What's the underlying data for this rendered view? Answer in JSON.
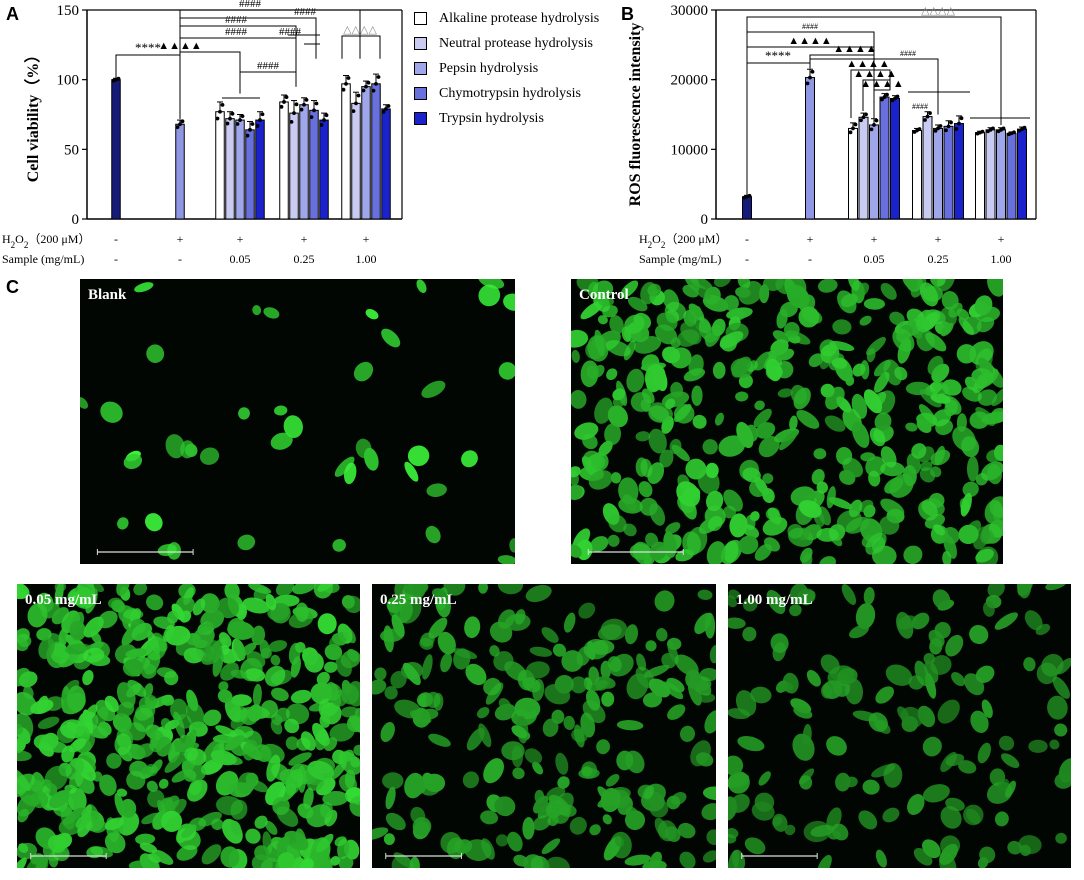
{
  "panels": {
    "a": "A",
    "b": "B",
    "c": "C"
  },
  "colors": {
    "alkaline": "#ffffff",
    "neutral": "#c9cbf3",
    "pepsin": "#9fa6ea",
    "chymotrypsin": "#6870de",
    "trypsin": "#1a22cc",
    "blank": "#161a78",
    "control": "#8f97e4",
    "cell": "#2fd42f"
  },
  "legend": [
    {
      "name": "Alkaline protease hydrolysis",
      "color": "#ffffff"
    },
    {
      "name": "Neutral protease hydrolysis",
      "color": "#c9cbf3"
    },
    {
      "name": "Pepsin hydrolysis",
      "color": "#9fa6ea"
    },
    {
      "name": "Chymotrypsin hydrolysis",
      "color": "#6870de"
    },
    {
      "name": "Trypsin hydrolysis",
      "color": "#1a22cc"
    }
  ],
  "conditions": {
    "h2o2_label": "H2O2（200 μM）",
    "sample_label": "Sample (mg/mL)",
    "h2o2": [
      "-",
      "+",
      "+",
      "+",
      "+"
    ],
    "sample": [
      "-",
      "-",
      "0.05",
      "0.25",
      "1.00"
    ]
  },
  "chart_data": [
    {
      "type": "bar",
      "panel": "A",
      "title": "",
      "ylabel": "Cell viability（%）",
      "xlabel": "",
      "ylim": [
        0,
        150
      ],
      "yticks": [
        0,
        50,
        100,
        150
      ],
      "groups": [
        "Blank",
        "Control",
        "0.05",
        "0.25",
        "1.00"
      ],
      "blank": {
        "value": 100,
        "error": 1
      },
      "control": {
        "value": 68,
        "error": 3
      },
      "series": [
        {
          "name": "Alkaline protease hydrolysis",
          "values": [
            77,
            84,
            97
          ],
          "errors": [
            7,
            5,
            6
          ]
        },
        {
          "name": "Neutral protease hydrolysis",
          "values": [
            72,
            76,
            83
          ],
          "errors": [
            5,
            9,
            8
          ]
        },
        {
          "name": "Pepsin hydrolysis",
          "values": [
            71,
            82,
            95
          ],
          "errors": [
            4,
            5,
            4
          ]
        },
        {
          "name": "Chymotrypsin hydrolysis",
          "values": [
            64,
            78,
            97
          ],
          "errors": [
            6,
            7,
            7
          ]
        },
        {
          "name": "Trypsin hydrolysis",
          "values": [
            71,
            71,
            79
          ],
          "errors": [
            6,
            5,
            3
          ]
        }
      ],
      "annotations": [
        "****",
        "▲▲▲▲",
        "####",
        "####",
        "####",
        "####",
        "####",
        "△△△△"
      ]
    },
    {
      "type": "bar",
      "panel": "B",
      "title": "",
      "ylabel": "ROS fluorescence intensity",
      "xlabel": "",
      "ylim": [
        0,
        30000
      ],
      "yticks": [
        0,
        10000,
        20000,
        30000
      ],
      "groups": [
        "Blank",
        "Control",
        "0.05",
        "0.25",
        "1.00"
      ],
      "blank": {
        "value": 3200,
        "error": 200
      },
      "control": {
        "value": 20300,
        "error": 1200
      },
      "series": [
        {
          "name": "Alkaline protease hydrolysis",
          "values": [
            13000,
            12700,
            12400
          ],
          "errors": [
            800,
            300,
            200
          ]
        },
        {
          "name": "Neutral protease hydrolysis",
          "values": [
            14600,
            14700,
            12800
          ],
          "errors": [
            600,
            700,
            300
          ]
        },
        {
          "name": "Pepsin hydrolysis",
          "values": [
            13500,
            13000,
            12800
          ],
          "errors": [
            900,
            500,
            300
          ]
        },
        {
          "name": "Chymotrypsin hydrolysis",
          "values": [
            17500,
            13300,
            12300
          ],
          "errors": [
            500,
            800,
            200
          ]
        },
        {
          "name": "Trypsin hydrolysis",
          "values": [
            17300,
            13700,
            12900
          ],
          "errors": [
            400,
            1100,
            300
          ]
        }
      ],
      "annotations": [
        "****",
        "▲▲▲▲",
        "▲▲▲▲",
        "▲▲▲▲",
        "▲▲▲▲",
        "▲▲▲▲",
        "####",
        "####",
        "####",
        "△△△△"
      ]
    }
  ],
  "micrographs": [
    {
      "label": "Blank",
      "density": 42,
      "brightness": 0.95
    },
    {
      "label": "Control",
      "density": 420,
      "brightness": 0.75
    },
    {
      "label": "0.05 mg/mL",
      "density": 480,
      "brightness": 0.8
    },
    {
      "label": "0.25 mg/mL",
      "density": 230,
      "brightness": 0.55
    },
    {
      "label": "1.00 mg/mL",
      "density": 150,
      "brightness": 0.45
    }
  ]
}
